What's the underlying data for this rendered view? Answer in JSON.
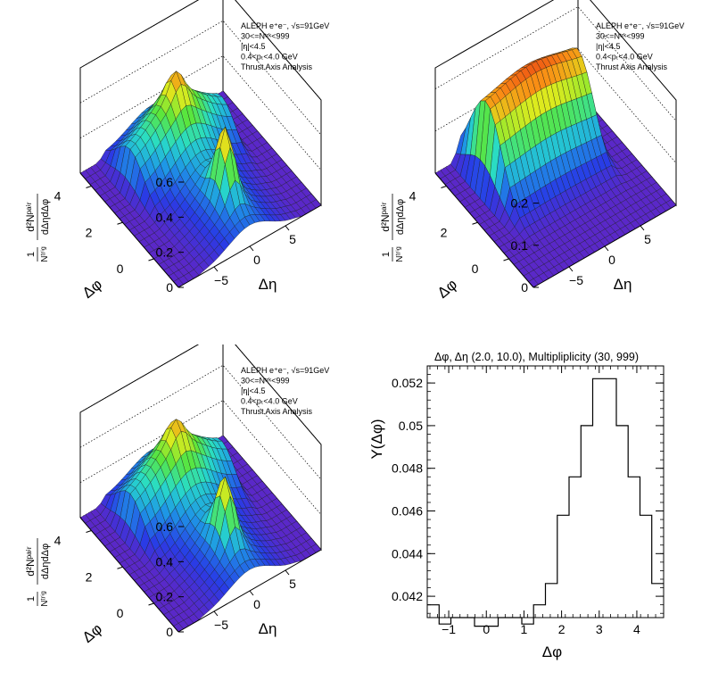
{
  "info_box": {
    "line1": "ALEPH e⁺e⁻, √s=91GeV",
    "line2": "30<=Nᵗʳᵏ<999",
    "line3": "|η|<4.5",
    "line4": "0.4<pₜ<4.0 GeV",
    "line5": "Thrust Axis Analysis"
  },
  "surface_axes": {
    "zlabel_num": "d²Nᵖᵃⁱʳ",
    "zlabel_den": "dΔηdΔφ",
    "zlabel_pre": "1",
    "zlabel_pre_den": "Nᵗʳⁱᵍ",
    "xlabel": "Δη",
    "ylabel": "Δφ",
    "eta_ticks": [
      "−5",
      "0",
      "5"
    ],
    "phi_ticks": [
      "0",
      "2",
      "4"
    ]
  },
  "panels": {
    "top_left": {
      "z_ticks": [
        "0",
        "0.2",
        "0.4",
        "0.6"
      ],
      "zmax": 0.6
    },
    "top_right": {
      "z_ticks": [
        "0",
        "0.1",
        "0.2"
      ],
      "zmax": 0.25
    },
    "bottom_left": {
      "z_ticks": [
        "0",
        "0.2",
        "0.4",
        "0.6"
      ],
      "zmax": 0.6
    }
  },
  "chart_data": [
    {
      "type": "surface",
      "panel": "top_left",
      "description_axes": {
        "x": "Δη",
        "y": "Δφ"
      },
      "eta_range": [
        -10,
        10
      ],
      "phi_range": [
        -1.57,
        4.71
      ],
      "peaks": {
        "near_side": 0.58,
        "away_side": 0.4
      }
    },
    {
      "type": "surface",
      "panel": "top_right",
      "eta_range": [
        -10,
        10
      ],
      "phi_range": [
        -1.57,
        4.71
      ],
      "ridge_max": 0.23
    },
    {
      "type": "surface",
      "panel": "bottom_left",
      "eta_range": [
        -10,
        10
      ],
      "phi_range": [
        -1.57,
        4.71
      ],
      "peaks": {
        "near_side": 0.55,
        "away_side": 0.38
      }
    },
    {
      "type": "histogram",
      "panel": "bottom_right",
      "title": "Δφ, Δη (2.0, 10.0), Multipliplicity (30, 999)",
      "xlabel": "Δφ",
      "ylabel": "Y(Δφ)",
      "xlim": [
        -1.5708,
        4.7124
      ],
      "ylim": [
        0.041,
        0.0528
      ],
      "x_ticks": [
        "−1",
        "0",
        "1",
        "2",
        "3",
        "4"
      ],
      "y_ticks": [
        "0.042",
        "0.044",
        "0.046",
        "0.048",
        "0.05",
        "0.052"
      ],
      "bin_edges": [
        -1.5708,
        -1.2566,
        -0.9425,
        -0.6283,
        -0.3142,
        0.0,
        0.3142,
        0.6283,
        0.9425,
        1.2566,
        1.5708,
        1.885,
        2.1991,
        2.5133,
        2.8274,
        3.1416,
        3.4558,
        3.7699,
        4.0841,
        4.3982,
        4.7124
      ],
      "values": [
        0.0416,
        0.0407,
        0.041,
        0.041,
        0.0406,
        0.0406,
        0.041,
        0.041,
        0.0407,
        0.0416,
        0.0426,
        0.0458,
        0.0476,
        0.05,
        0.0522,
        0.0522,
        0.05,
        0.0476,
        0.0458,
        0.0426
      ]
    }
  ]
}
